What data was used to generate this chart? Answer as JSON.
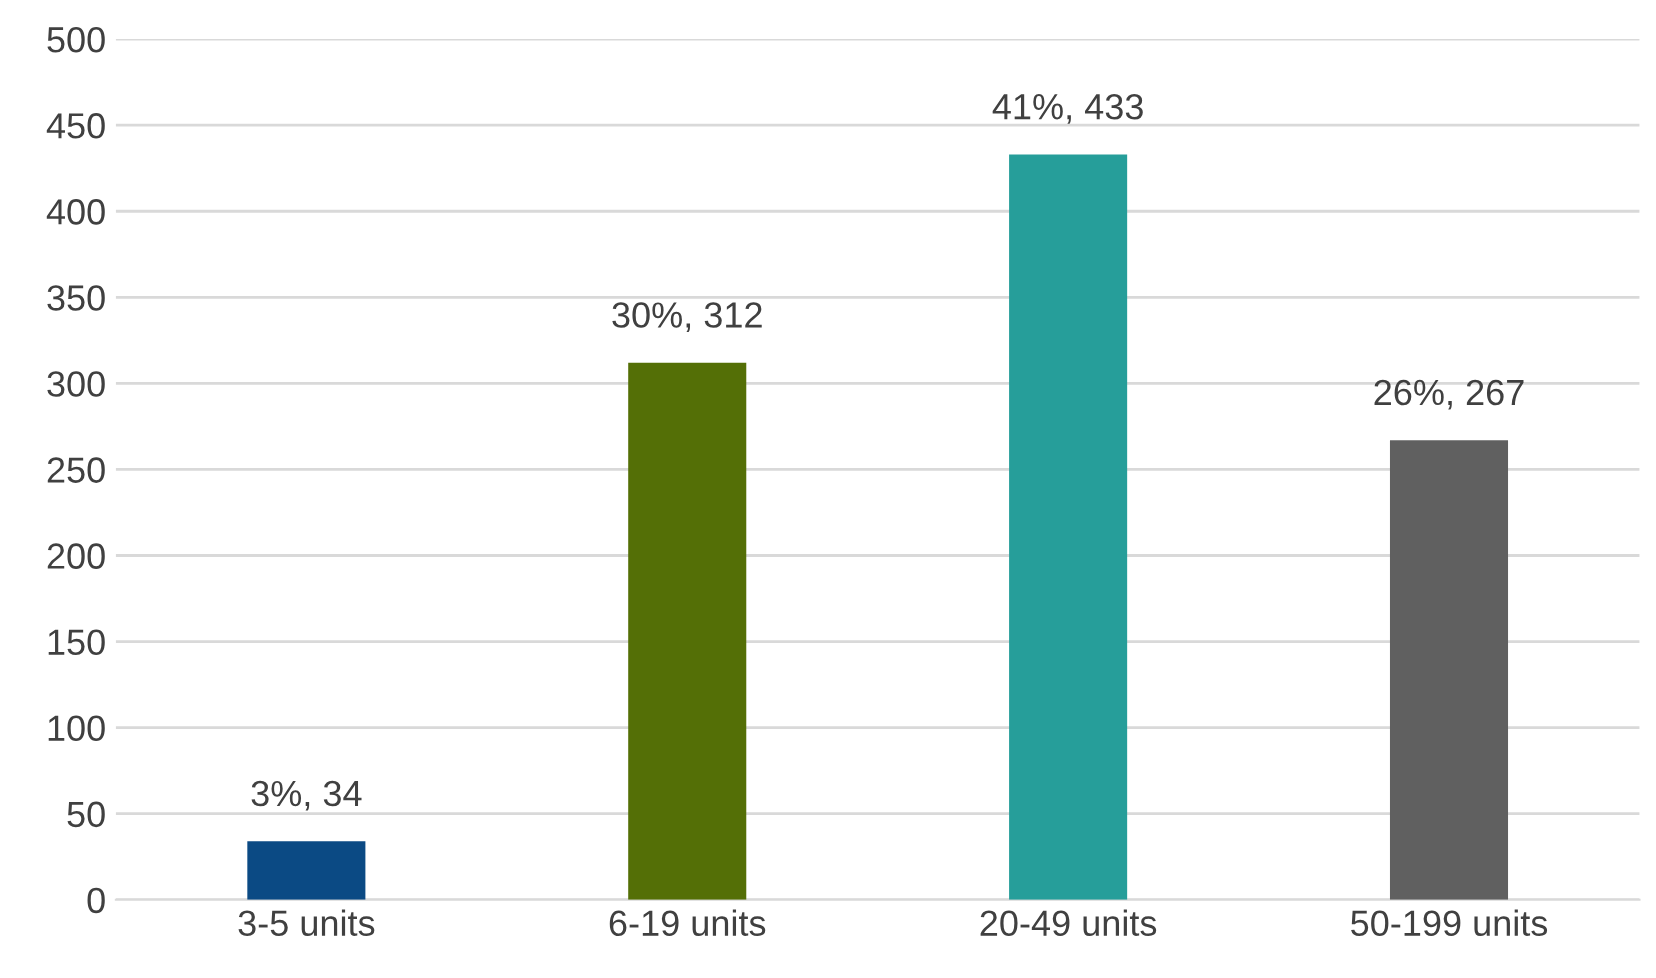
{
  "chart_data": {
    "type": "bar",
    "categories": [
      "3-5 units",
      "6-19 units",
      "20-49 units",
      "50-199 units"
    ],
    "values": [
      34,
      312,
      433,
      267
    ],
    "colors": [
      "#0b4a84",
      "#546f06",
      "#269e9a",
      "#606060"
    ],
    "value_labels": [
      "3%, 34",
      "30%, 312",
      "41%, 433",
      "26%, 267"
    ],
    "ylim": [
      0,
      500
    ],
    "yticks": [
      0,
      50,
      100,
      150,
      200,
      250,
      300,
      350,
      400,
      450,
      500
    ],
    "grid": "y",
    "legend": false
  }
}
